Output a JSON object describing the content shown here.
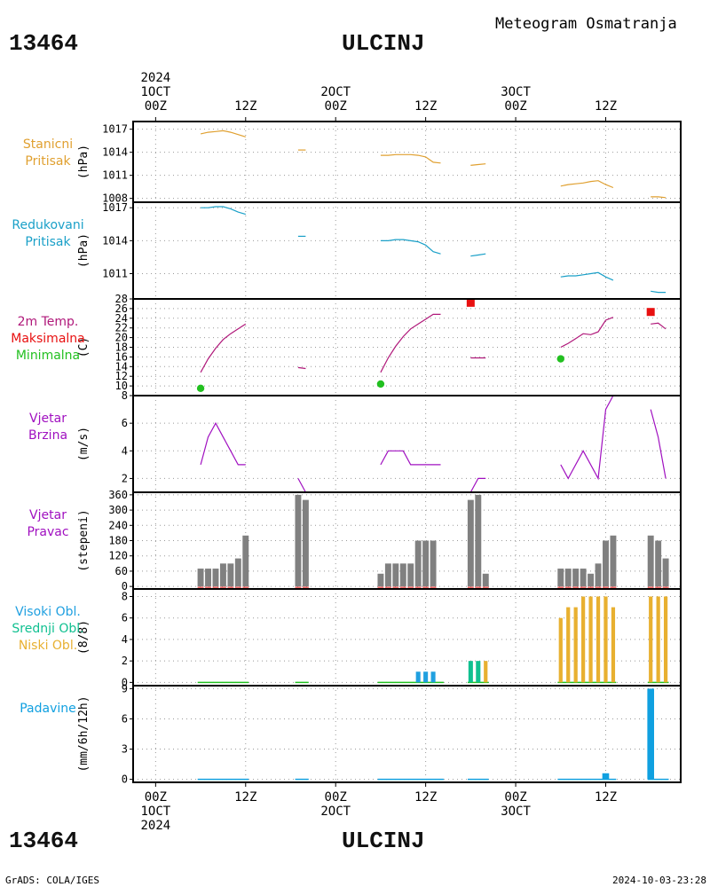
{
  "header": {
    "station_id": "13464",
    "station_name": "ULCINJ",
    "subtitle": "Meteogram Osmatranja",
    "footer_left": "GrADS: COLA/IGES",
    "footer_right": "2024-10-03-23:28"
  },
  "time_axis": {
    "top": [
      {
        "hour": 0,
        "l1": "2024",
        "l2": "1OCT",
        "l3": "00Z"
      },
      {
        "hour": 12,
        "l1": "",
        "l2": "",
        "l3": "12Z"
      },
      {
        "hour": 24,
        "l1": "",
        "l2": "2OCT",
        "l3": "00Z"
      },
      {
        "hour": 36,
        "l1": "",
        "l2": "",
        "l3": "12Z"
      },
      {
        "hour": 48,
        "l1": "",
        "l2": "3OCT",
        "l3": "00Z"
      },
      {
        "hour": 60,
        "l1": "",
        "l2": "",
        "l3": "12Z"
      }
    ],
    "bottom": [
      {
        "hour": 0,
        "l1": "00Z",
        "l2": "1OCT",
        "l3": "2024"
      },
      {
        "hour": 12,
        "l1": "12Z",
        "l2": "",
        "l3": ""
      },
      {
        "hour": 24,
        "l1": "00Z",
        "l2": "2OCT",
        "l3": ""
      },
      {
        "hour": 36,
        "l1": "12Z",
        "l2": "",
        "l3": ""
      },
      {
        "hour": 48,
        "l1": "00Z",
        "l2": "3OCT",
        "l3": ""
      },
      {
        "hour": 60,
        "l1": "12Z",
        "l2": "",
        "l3": ""
      }
    ],
    "range": [
      -3,
      70
    ]
  },
  "colors": {
    "stanicni": "#e0a030",
    "redukovani": "#1aa0c8",
    "temp_line": "#b0187a",
    "maks": "#e81010",
    "min": "#22c020",
    "wind": "#a010c0",
    "bars": "#808080",
    "visoki": "#20a0e0",
    "srednji": "#10c090",
    "niski": "#e8b030",
    "padavine": "#10a0e0"
  },
  "chart_data": [
    {
      "type": "line",
      "labels": [
        "Stanicni",
        "Pritisak"
      ],
      "ylabel": "(hPa)",
      "ylim": [
        1007.5,
        1018
      ],
      "yticks": [
        1008,
        1011,
        1014,
        1017
      ],
      "segments": [
        [
          [
            6,
            1016.4
          ],
          [
            7,
            1016.6
          ],
          [
            8,
            1016.7
          ],
          [
            9,
            1016.8
          ],
          [
            10,
            1016.6
          ],
          [
            11,
            1016.3
          ],
          [
            12,
            1016.0
          ]
        ],
        [
          [
            19,
            1014.3
          ],
          [
            20,
            1014.3
          ]
        ],
        [
          [
            30,
            1013.6
          ],
          [
            31,
            1013.6
          ],
          [
            32,
            1013.7
          ],
          [
            33,
            1013.7
          ],
          [
            34,
            1013.7
          ],
          [
            35,
            1013.6
          ],
          [
            36,
            1013.4
          ],
          [
            37,
            1012.7
          ],
          [
            38,
            1012.6
          ]
        ],
        [
          [
            42,
            1012.3
          ],
          [
            43,
            1012.4
          ],
          [
            44,
            1012.5
          ]
        ],
        [
          [
            54,
            1009.6
          ],
          [
            55,
            1009.8
          ],
          [
            56,
            1009.9
          ],
          [
            57,
            1010.0
          ],
          [
            58,
            1010.2
          ],
          [
            59,
            1010.3
          ],
          [
            60,
            1009.8
          ],
          [
            61,
            1009.4
          ]
        ],
        [
          [
            66,
            1008.2
          ],
          [
            67,
            1008.2
          ],
          [
            68,
            1008.1
          ]
        ]
      ]
    },
    {
      "type": "line",
      "labels": [
        "Redukovani",
        "Pritisak"
      ],
      "ylabel": "(hPa)",
      "ylim": [
        1008.7,
        1017.5
      ],
      "yticks": [
        1011,
        1014,
        1017
      ],
      "segments": [
        [
          [
            6,
            1017.0
          ],
          [
            7,
            1017.0
          ],
          [
            8,
            1017.1
          ],
          [
            9,
            1017.1
          ],
          [
            10,
            1016.9
          ],
          [
            11,
            1016.6
          ],
          [
            12,
            1016.4
          ]
        ],
        [
          [
            19,
            1014.4
          ],
          [
            20,
            1014.4
          ]
        ],
        [
          [
            30,
            1014.0
          ],
          [
            31,
            1014.0
          ],
          [
            32,
            1014.1
          ],
          [
            33,
            1014.1
          ],
          [
            34,
            1014.0
          ],
          [
            35,
            1013.9
          ],
          [
            36,
            1013.6
          ],
          [
            37,
            1013.0
          ],
          [
            38,
            1012.8
          ]
        ],
        [
          [
            42,
            1012.6
          ],
          [
            43,
            1012.7
          ],
          [
            44,
            1012.8
          ]
        ],
        [
          [
            54,
            1010.7
          ],
          [
            55,
            1010.8
          ],
          [
            56,
            1010.8
          ],
          [
            57,
            1010.9
          ],
          [
            58,
            1011.0
          ],
          [
            59,
            1011.1
          ],
          [
            60,
            1010.7
          ],
          [
            61,
            1010.4
          ]
        ],
        [
          [
            66,
            1009.4
          ],
          [
            67,
            1009.3
          ],
          [
            68,
            1009.3
          ]
        ]
      ]
    },
    {
      "type": "line",
      "labels": [
        "2m Temp.",
        "Maksimalna",
        "Minimalna"
      ],
      "ylabel": "(C)",
      "ylim": [
        8,
        28
      ],
      "yticks": [
        10,
        12,
        14,
        16,
        18,
        20,
        22,
        24,
        26,
        28
      ],
      "segments": [
        [
          [
            6,
            12.8
          ],
          [
            7,
            15.6
          ],
          [
            8,
            17.8
          ],
          [
            9,
            19.6
          ],
          [
            10,
            20.8
          ],
          [
            11,
            21.8
          ],
          [
            12,
            22.8
          ]
        ],
        [
          [
            19,
            13.8
          ],
          [
            20,
            13.6
          ]
        ],
        [
          [
            30,
            12.8
          ],
          [
            31,
            15.8
          ],
          [
            32,
            18.2
          ],
          [
            33,
            20.2
          ],
          [
            34,
            21.8
          ],
          [
            35,
            22.8
          ],
          [
            36,
            23.8
          ],
          [
            37,
            24.8
          ],
          [
            38,
            24.8
          ]
        ],
        [
          [
            42,
            15.8
          ],
          [
            43,
            15.8
          ],
          [
            44,
            15.8
          ]
        ],
        [
          [
            54,
            18.0
          ],
          [
            55,
            18.8
          ],
          [
            56,
            19.8
          ],
          [
            57,
            20.8
          ],
          [
            58,
            20.6
          ],
          [
            59,
            21.2
          ],
          [
            60,
            23.6
          ],
          [
            61,
            24.2
          ]
        ],
        [
          [
            66,
            22.8
          ],
          [
            67,
            23.0
          ],
          [
            68,
            21.8
          ]
        ]
      ],
      "maksimalna": [
        [
          42,
          27.2
        ],
        [
          66,
          25.3
        ]
      ],
      "minimalna": [
        [
          6,
          9.5
        ],
        [
          30,
          10.4
        ],
        [
          54,
          15.6
        ]
      ]
    },
    {
      "type": "line",
      "labels": [
        "Vjetar",
        "Brzina"
      ],
      "ylabel": "(m/s)",
      "ylim": [
        1,
        8
      ],
      "yticks": [
        2,
        4,
        6,
        8
      ],
      "segments": [
        [
          [
            6,
            3
          ],
          [
            7,
            5
          ],
          [
            8,
            6
          ],
          [
            9,
            5
          ],
          [
            10,
            4
          ],
          [
            11,
            3
          ],
          [
            12,
            3
          ]
        ],
        [
          [
            19,
            2
          ],
          [
            20,
            1
          ]
        ],
        [
          [
            30,
            3
          ],
          [
            31,
            4
          ],
          [
            32,
            4
          ],
          [
            33,
            4
          ],
          [
            34,
            3
          ],
          [
            35,
            3
          ],
          [
            36,
            3
          ],
          [
            37,
            3
          ],
          [
            38,
            3
          ]
        ],
        [
          [
            42,
            1
          ],
          [
            43,
            2
          ],
          [
            44,
            2
          ]
        ],
        [
          [
            54,
            3
          ],
          [
            55,
            2
          ],
          [
            57,
            4
          ],
          [
            59,
            2
          ],
          [
            60,
            7
          ],
          [
            61,
            8
          ]
        ],
        [
          [
            66,
            7
          ],
          [
            67,
            5
          ],
          [
            68,
            2
          ]
        ]
      ]
    },
    {
      "type": "bar",
      "labels": [
        "Vjetar",
        "Pravac"
      ],
      "ylabel": "(stepeni)",
      "ylim": [
        -10,
        370
      ],
      "yticks": [
        0,
        60,
        120,
        180,
        240,
        300,
        360
      ],
      "bars": [
        [
          6,
          70
        ],
        [
          7,
          70
        ],
        [
          8,
          70
        ],
        [
          9,
          90
        ],
        [
          10,
          90
        ],
        [
          11,
          110
        ],
        [
          12,
          200
        ],
        [
          19,
          360
        ],
        [
          20,
          340
        ],
        [
          30,
          50
        ],
        [
          31,
          90
        ],
        [
          32,
          90
        ],
        [
          33,
          90
        ],
        [
          34,
          90
        ],
        [
          35,
          180
        ],
        [
          36,
          180
        ],
        [
          37,
          180
        ],
        [
          42,
          340
        ],
        [
          43,
          360
        ],
        [
          44,
          50
        ],
        [
          54,
          70
        ],
        [
          55,
          70
        ],
        [
          56,
          70
        ],
        [
          57,
          70
        ],
        [
          58,
          50
        ],
        [
          59,
          90
        ],
        [
          60,
          180
        ],
        [
          61,
          200
        ],
        [
          66,
          200
        ],
        [
          67,
          180
        ],
        [
          68,
          110
        ]
      ]
    },
    {
      "type": "bar",
      "labels": [
        "Visoki Obl.",
        "Srednji Obl.",
        "Niski Obl."
      ],
      "ylabel": "(8/8)",
      "ylim": [
        -0.3,
        8.7
      ],
      "yticks": [
        0,
        2,
        4,
        6,
        8
      ],
      "visoki": [
        [
          35,
          1
        ],
        [
          36,
          1
        ],
        [
          37,
          1
        ]
      ],
      "srednji": [
        [
          42,
          2
        ],
        [
          43,
          2
        ]
      ],
      "niski": [
        [
          44,
          2
        ],
        [
          54,
          6
        ],
        [
          55,
          7
        ],
        [
          56,
          7
        ],
        [
          57,
          8
        ],
        [
          58,
          8
        ],
        [
          59,
          8
        ],
        [
          60,
          8
        ],
        [
          61,
          7
        ],
        [
          66,
          8
        ],
        [
          67,
          8
        ],
        [
          68,
          8
        ]
      ],
      "baseline": [
        [
          6,
          12
        ],
        [
          19,
          20
        ],
        [
          30,
          38
        ],
        [
          42,
          44
        ],
        [
          54,
          61
        ],
        [
          66,
          68
        ]
      ]
    },
    {
      "type": "bar",
      "labels": [
        "Padavine"
      ],
      "ylabel": "(mm/6h/12h)",
      "ylim": [
        -0.3,
        9.3
      ],
      "yticks": [
        0,
        3,
        6,
        9
      ],
      "bars": [
        [
          60,
          0.6
        ],
        [
          66,
          9
        ]
      ],
      "baseline": [
        [
          6,
          12
        ],
        [
          19,
          20
        ],
        [
          30,
          38
        ],
        [
          42,
          44
        ],
        [
          54,
          61
        ],
        [
          66,
          68
        ]
      ]
    }
  ]
}
